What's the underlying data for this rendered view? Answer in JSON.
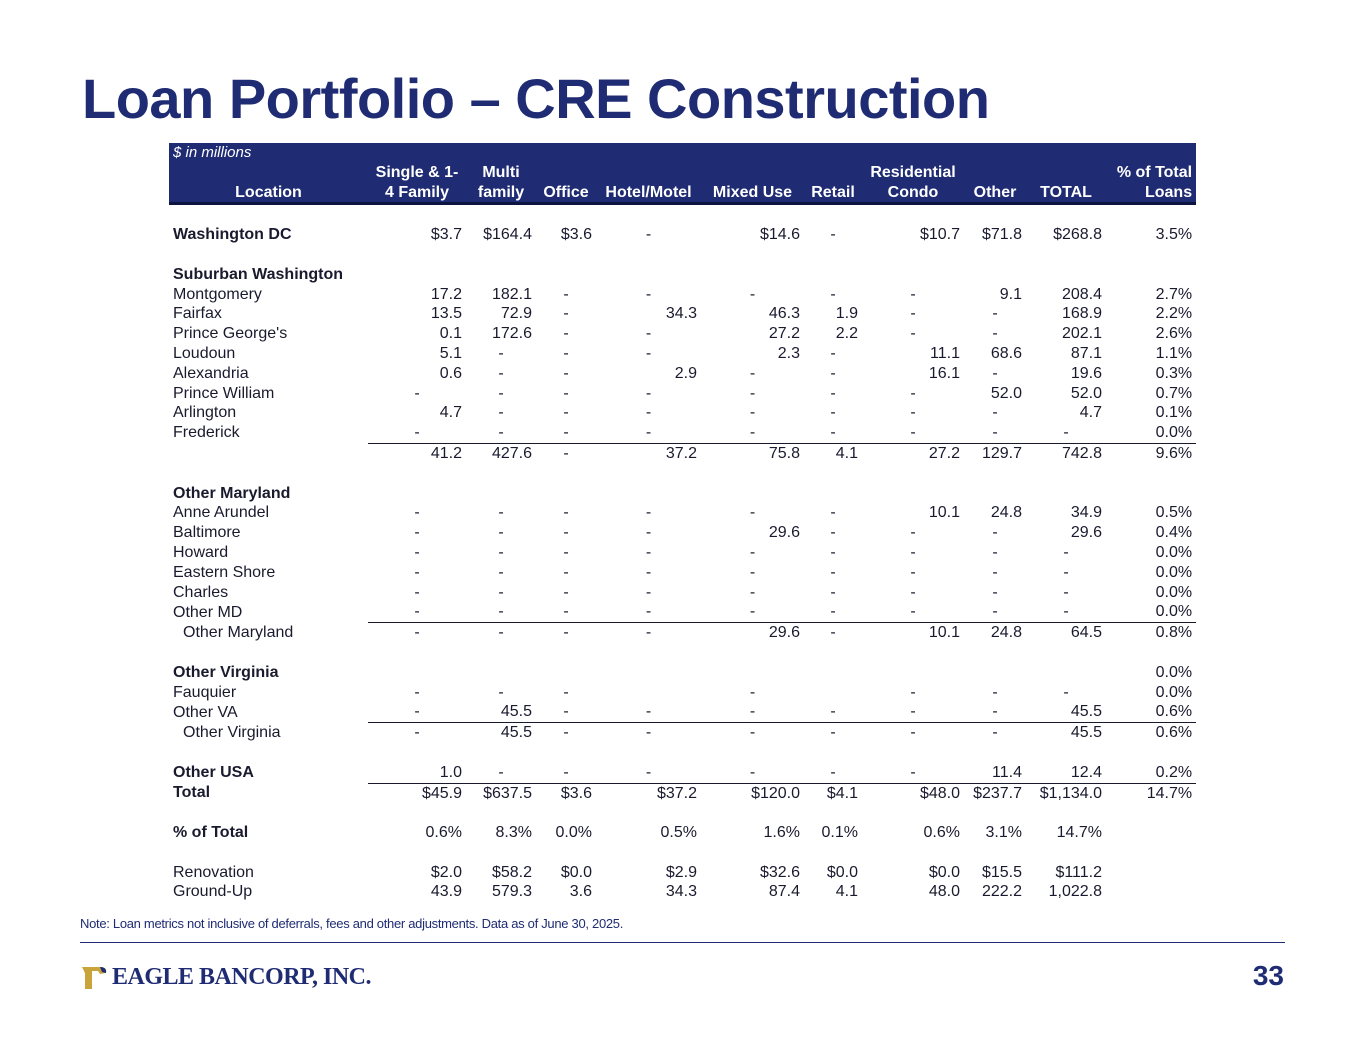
{
  "title": "Loan Portfolio – CRE Construction",
  "table": {
    "units_label": "$ in millions",
    "columns": [
      {
        "top": "",
        "bottom": "Location"
      },
      {
        "top": "Single & 1-",
        "bottom": "4 Family"
      },
      {
        "top": "Multi",
        "bottom": "family"
      },
      {
        "top": "",
        "bottom": "Office"
      },
      {
        "top": "",
        "bottom": "Hotel/Motel"
      },
      {
        "top": "",
        "bottom": "Mixed Use"
      },
      {
        "top": "",
        "bottom": "Retail"
      },
      {
        "top": "Residential",
        "bottom": "Condo"
      },
      {
        "top": "",
        "bottom": "Other"
      },
      {
        "top": "",
        "bottom": "TOTAL"
      },
      {
        "top": "% of Total",
        "bottom": "Loans"
      }
    ],
    "rows": [
      {
        "type": "spacer",
        "cells": []
      },
      {
        "type": "sec",
        "cells": [
          "Washington DC",
          "$3.7",
          "$164.4",
          "$3.6",
          "-",
          "$14.6",
          "-",
          "$10.7",
          "$71.8",
          "$268.8",
          "3.5%"
        ]
      },
      {
        "type": "spacer",
        "cells": []
      },
      {
        "type": "sec",
        "cells": [
          "Suburban Washington",
          "",
          "",
          "",
          "",
          "",
          "",
          "",
          "",
          "",
          ""
        ]
      },
      {
        "type": "row",
        "cells": [
          "Montgomery",
          "17.2",
          "182.1",
          "-",
          "-",
          "-",
          "-",
          "-",
          "9.1",
          "208.4",
          "2.7%"
        ]
      },
      {
        "type": "row",
        "cells": [
          "Fairfax",
          "13.5",
          "72.9",
          "-",
          "34.3",
          "46.3",
          "1.9",
          "-",
          "-",
          "168.9",
          "2.2%"
        ]
      },
      {
        "type": "row",
        "cells": [
          "Prince George's",
          "0.1",
          "172.6",
          "-",
          "-",
          "27.2",
          "2.2",
          "-",
          "-",
          "202.1",
          "2.6%"
        ]
      },
      {
        "type": "row",
        "cells": [
          "Loudoun",
          "5.1",
          "-",
          "-",
          "-",
          "2.3",
          "-",
          "11.1",
          "68.6",
          "87.1",
          "1.1%"
        ]
      },
      {
        "type": "row",
        "cells": [
          "Alexandria",
          "0.6",
          "-",
          "-",
          "2.9",
          "-",
          "-",
          "16.1",
          "-",
          "19.6",
          "0.3%"
        ]
      },
      {
        "type": "row",
        "cells": [
          "Prince William",
          "-",
          "-",
          "-",
          "-",
          "-",
          "-",
          "-",
          "52.0",
          "52.0",
          "0.7%"
        ]
      },
      {
        "type": "row",
        "cells": [
          "Arlington",
          "4.7",
          "-",
          "-",
          "-",
          "-",
          "-",
          "-",
          "-",
          "4.7",
          "0.1%"
        ]
      },
      {
        "type": "row",
        "cells": [
          "Frederick",
          "-",
          "-",
          "-",
          "-",
          "-",
          "-",
          "-",
          "-",
          "-",
          "0.0%"
        ]
      },
      {
        "type": "sum",
        "cells": [
          "",
          "41.2",
          "427.6",
          "-",
          "37.2",
          "75.8",
          "4.1",
          "27.2",
          "129.7",
          "742.8",
          "9.6%"
        ]
      },
      {
        "type": "spacer",
        "cells": []
      },
      {
        "type": "sec",
        "cells": [
          "Other Maryland",
          "",
          "",
          "",
          "",
          "",
          "",
          "",
          "",
          "",
          ""
        ]
      },
      {
        "type": "row",
        "cells": [
          "Anne Arundel",
          "-",
          "-",
          "-",
          "-",
          "-",
          "-",
          "10.1",
          "24.8",
          "34.9",
          "0.5%"
        ]
      },
      {
        "type": "row",
        "cells": [
          "Baltimore",
          "-",
          "-",
          "-",
          "-",
          "29.6",
          "-",
          "-",
          "-",
          "29.6",
          "0.4%"
        ]
      },
      {
        "type": "row",
        "cells": [
          "Howard",
          "-",
          "-",
          "-",
          "-",
          "-",
          "-",
          "-",
          "-",
          "-",
          "0.0%"
        ]
      },
      {
        "type": "row",
        "cells": [
          "Eastern Shore",
          "-",
          "-",
          "-",
          "-",
          "-",
          "-",
          "-",
          "-",
          "-",
          "0.0%"
        ]
      },
      {
        "type": "row",
        "cells": [
          "Charles",
          "-",
          "-",
          "-",
          "-",
          "-",
          "-",
          "-",
          "-",
          "-",
          "0.0%"
        ]
      },
      {
        "type": "row",
        "cells": [
          "Other MD",
          "-",
          "-",
          "-",
          "-",
          "-",
          "-",
          "-",
          "-",
          "-",
          "0.0%"
        ]
      },
      {
        "type": "sum sub",
        "cells": [
          "Other Maryland",
          "-",
          "-",
          "-",
          "-",
          "29.6",
          "-",
          "10.1",
          "24.8",
          "64.5",
          "0.8%"
        ]
      },
      {
        "type": "spacer",
        "cells": []
      },
      {
        "type": "sec",
        "cells": [
          "Other Virginia",
          "",
          "",
          "",
          "",
          "",
          "",
          "",
          "",
          "",
          "0.0%"
        ]
      },
      {
        "type": "row",
        "cells": [
          "Fauquier",
          "-",
          "-",
          "-",
          "",
          "-",
          "",
          "-",
          "-",
          "-",
          "0.0%"
        ]
      },
      {
        "type": "row",
        "cells": [
          "Other VA",
          "-",
          "45.5",
          "-",
          "-",
          "-",
          "-",
          "-",
          "-",
          "45.5",
          "0.6%"
        ]
      },
      {
        "type": "sum sub",
        "cells": [
          "Other Virginia",
          "-",
          "45.5",
          "-",
          "-",
          "-",
          "-",
          "-",
          "-",
          "45.5",
          "0.6%"
        ]
      },
      {
        "type": "spacer",
        "cells": []
      },
      {
        "type": "sec",
        "cells": [
          "Other USA",
          "1.0",
          "-",
          "-",
          "-",
          "-",
          "-",
          "-",
          "11.4",
          "12.4",
          "0.2%"
        ]
      },
      {
        "type": "sum total",
        "cells": [
          "Total",
          "$45.9",
          "$637.5",
          "$3.6",
          "$37.2",
          "$120.0",
          "$4.1",
          "$48.0",
          "$237.7",
          "$1,134.0",
          "14.7%"
        ]
      },
      {
        "type": "spacer",
        "cells": []
      },
      {
        "type": "sec",
        "cells": [
          "% of Total",
          "0.6%",
          "8.3%",
          "0.0%",
          "0.5%",
          "1.6%",
          "0.1%",
          "0.6%",
          "3.1%",
          "14.7%",
          ""
        ]
      },
      {
        "type": "spacer",
        "cells": []
      },
      {
        "type": "row",
        "cells": [
          "Renovation",
          "$2.0",
          "$58.2",
          "$0.0",
          "$2.9",
          "$32.6",
          "$0.0",
          "$0.0",
          "$15.5",
          "$111.2",
          ""
        ]
      },
      {
        "type": "row",
        "cells": [
          "Ground-Up",
          "43.9",
          "579.3",
          "3.6",
          "34.3",
          "87.4",
          "4.1",
          "48.0",
          "222.2",
          "1,022.8",
          ""
        ]
      }
    ]
  },
  "note": "Note: Loan metrics not inclusive of deferrals, fees and other adjustments. Data as of June 30, 2025.",
  "logo": {
    "text": "EAGLE BANCORP, INC.",
    "icon": "eagle-logo-icon",
    "color": "#1f2c73",
    "accent": "#c9a43a"
  },
  "page_number": "33",
  "colors": {
    "primary": "#1f2c73",
    "text": "#1a1a2e"
  }
}
